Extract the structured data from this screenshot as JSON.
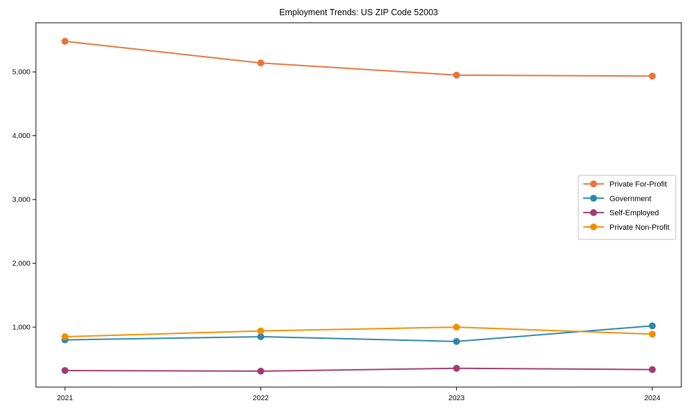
{
  "figure": {
    "background": "#ffffff",
    "spine_color": "#000000"
  },
  "chart_data": {
    "type": "line",
    "title": "Employment Trends: US ZIP Code 52003",
    "xlabel": "",
    "ylabel": "",
    "x": [
      "2021",
      "2022",
      "2023",
      "2024"
    ],
    "series": [
      {
        "name": "Private For-Profit",
        "color": "#E8743B",
        "values": [
          5480,
          5140,
          4950,
          4935
        ]
      },
      {
        "name": "Government",
        "color": "#2E86AB",
        "values": [
          800,
          850,
          775,
          1020
        ]
      },
      {
        "name": "Self-Employed",
        "color": "#A23B72",
        "values": [
          320,
          310,
          355,
          335
        ]
      },
      {
        "name": "Private Non-Profit",
        "color": "#F18F01",
        "values": [
          850,
          940,
          1000,
          890
        ]
      }
    ],
    "ylim": [
      60,
      5770
    ],
    "yticks": [
      1000,
      2000,
      3000,
      4000,
      5000
    ],
    "ytick_labels": [
      "1,000",
      "2,000",
      "3,000",
      "4,000",
      "5,000"
    ],
    "xtick_labels": [
      "2021",
      "2022",
      "2023",
      "2024"
    ],
    "grid": false,
    "marker": "circle",
    "line_width": 2,
    "legend": {
      "position": "center-right",
      "border_color": "#c0c0c0",
      "background": "#ffffff"
    }
  }
}
